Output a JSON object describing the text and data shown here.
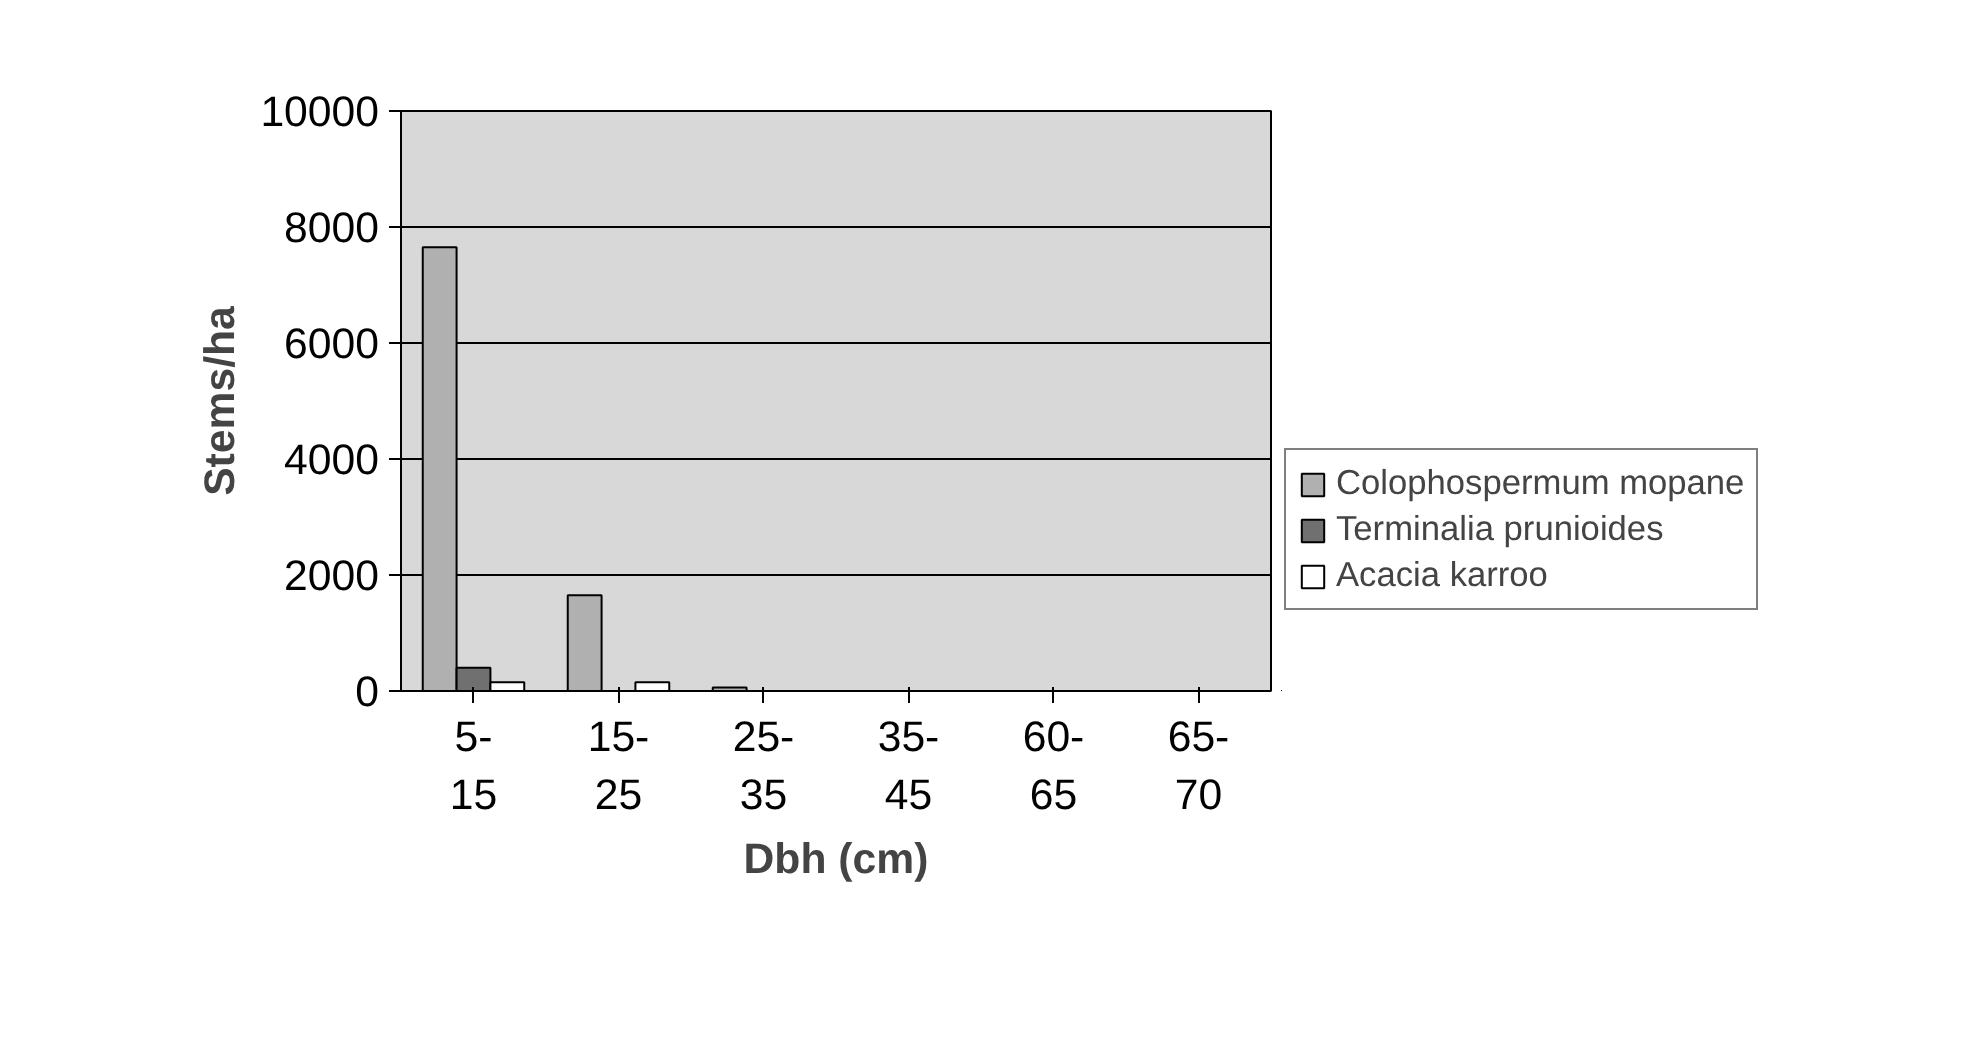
{
  "chart_data": {
    "type": "bar",
    "xlabel": "Dbh (cm)",
    "ylabel": "Stems/ha",
    "categories": [
      "5-15",
      "15-25",
      "25-35",
      "35-45",
      "60-65",
      "65-70"
    ],
    "series": [
      {
        "name": "Colophospermum mopane",
        "color": "#b0b0b0",
        "values": [
          7650,
          1650,
          60,
          0,
          0,
          0
        ]
      },
      {
        "name": "Terminalia prunioides",
        "color": "#707070",
        "values": [
          400,
          0,
          0,
          0,
          0,
          0
        ]
      },
      {
        "name": "Acacia karroo",
        "color": "#ffffff",
        "values": [
          150,
          150,
          0,
          0,
          0,
          0
        ]
      }
    ],
    "ylim": [
      0,
      10000
    ],
    "yticks": [
      0,
      2000,
      4000,
      6000,
      8000,
      10000
    ],
    "grid": "y",
    "legend": "right"
  }
}
